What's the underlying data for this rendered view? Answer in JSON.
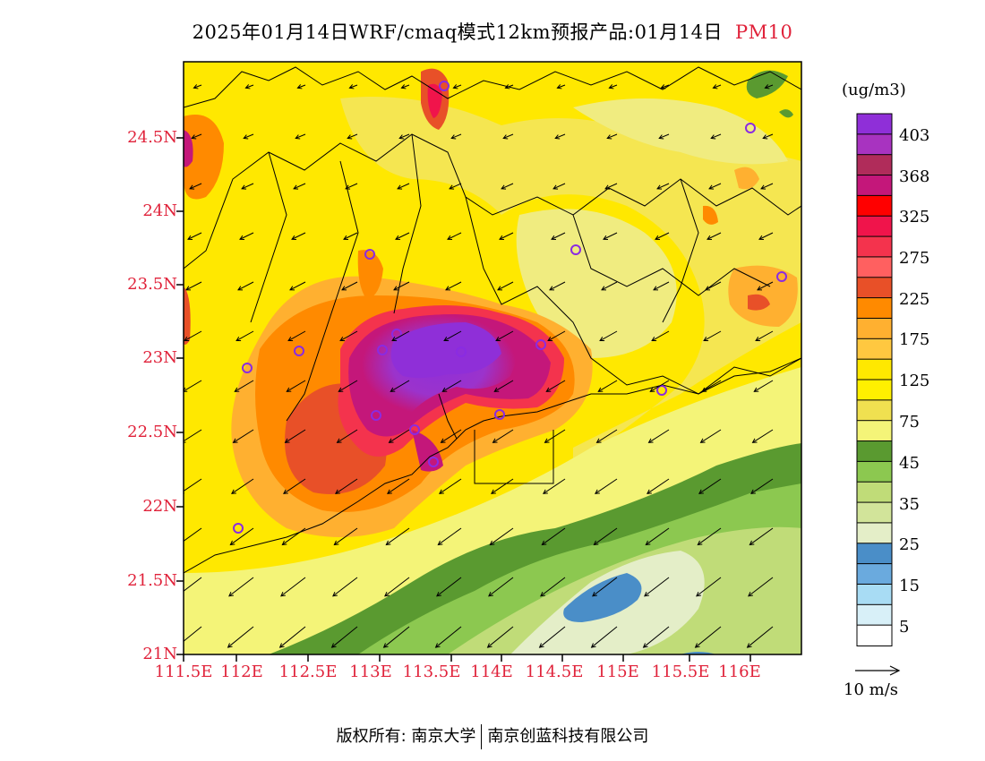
{
  "header": {
    "title": "2025年01月14日WRF/cmaq模式12km预报产品:01月14日",
    "pollutant": "PM10"
  },
  "map": {
    "lat_ticks": [
      "24.5N",
      "24N",
      "23.5N",
      "23N",
      "22.5N",
      "22N",
      "21.5N",
      "21N"
    ],
    "lon_ticks": [
      "111.5E",
      "112E",
      "112.5E",
      "113E",
      "113.5E",
      "114E",
      "114.5E",
      "115E",
      "115.5E",
      "116E"
    ]
  },
  "colorbar": {
    "units": "(ug/m3)",
    "labels": [
      "403",
      "368",
      "325",
      "275",
      "225",
      "175",
      "125",
      "75",
      "45",
      "35",
      "25",
      "15",
      "5"
    ],
    "colors": [
      "#8f2fd8",
      "#a833c0",
      "#b02c5a",
      "#c4177a",
      "#ff0000",
      "#f0144b",
      "#f4334d",
      "#ff6060",
      "#e85028",
      "#ff8a00",
      "#ffb030",
      "#ffc840",
      "#ffe800",
      "#fff000",
      "#f0e050",
      "#f4f478",
      "#5a9a30",
      "#8cc850",
      "#c0dc78",
      "#d2e49a",
      "#e4eec8",
      "#4a8ec8",
      "#6aaade",
      "#a8dcf4",
      "#d8f0f8",
      "#ffffff"
    ]
  },
  "wind": {
    "label": "10 m/s"
  },
  "footer": {
    "copyright": "版权所有: 南京大学",
    "company": "南京创蓝科技有限公司"
  }
}
